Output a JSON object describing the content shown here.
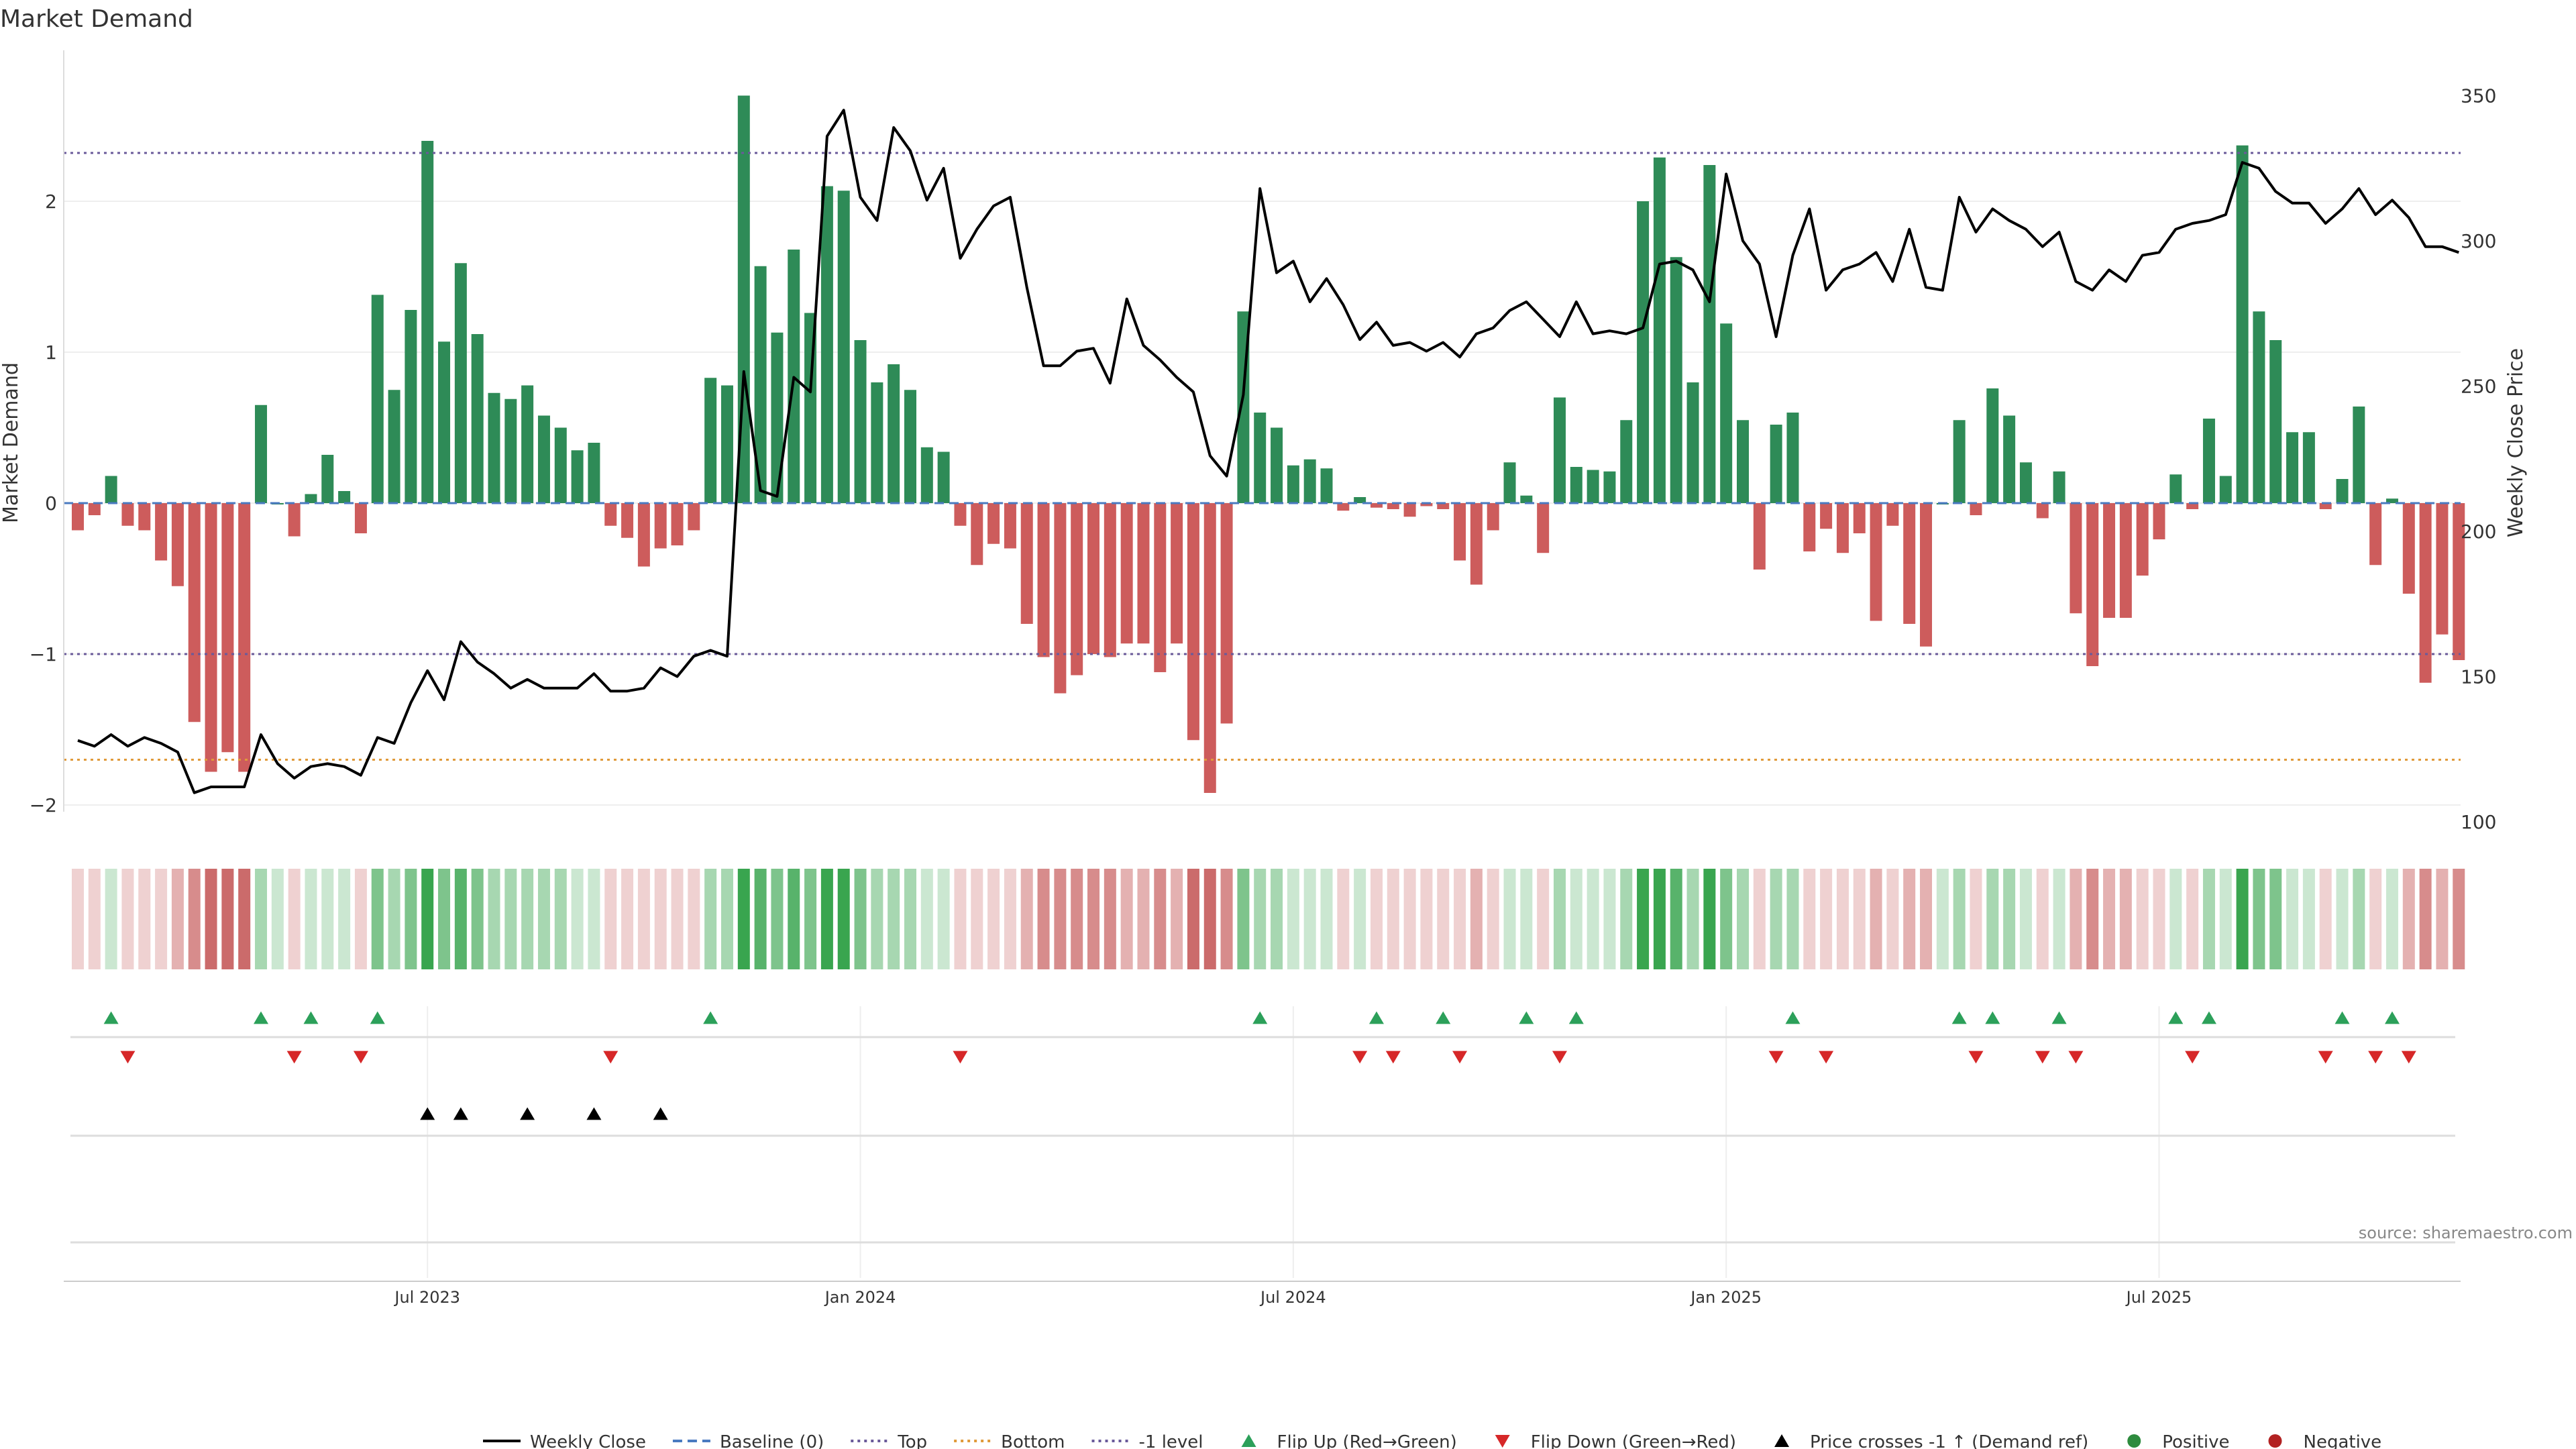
{
  "chart_data": {
    "type": "bar",
    "title": "Market Demand",
    "ylabel": "Market Demand",
    "y2label": "Weekly Close Price",
    "source": "source: sharemaestro.com",
    "ylim": [
      -2.1,
      2.75
    ],
    "y2lim": [
      100,
      355
    ],
    "yticks": [
      -2,
      -1,
      0,
      1,
      2
    ],
    "y2ticks": [
      100,
      150,
      200,
      250,
      300,
      350
    ],
    "x_ticks": [
      {
        "label": "Jul 2023",
        "week": 21
      },
      {
        "label": "Jan 2024",
        "week": 47
      },
      {
        "label": "Jul 2024",
        "week": 73
      },
      {
        "label": "Jan 2025",
        "week": 99
      },
      {
        "label": "Jul 2025",
        "week": 125
      }
    ],
    "reference_lines": {
      "top": 2.32,
      "bottom": -1.7,
      "minus_one": -1,
      "baseline": 0
    },
    "demand": [
      -0.18,
      -0.08,
      0.18,
      -0.15,
      -0.18,
      -0.38,
      -0.55,
      -1.45,
      -1.78,
      -1.65,
      -1.78,
      0.65,
      0.0,
      -0.22,
      0.06,
      0.32,
      0.08,
      -0.2,
      1.38,
      0.75,
      1.28,
      2.4,
      1.07,
      1.59,
      1.12,
      0.73,
      0.69,
      0.78,
      0.58,
      0.5,
      0.35,
      0.4,
      -0.15,
      -0.23,
      -0.42,
      -0.3,
      -0.28,
      -0.18,
      0.83,
      0.78,
      2.7,
      1.57,
      1.13,
      1.68,
      1.26,
      2.1,
      2.07,
      1.08,
      0.8,
      0.92,
      0.75,
      0.37,
      0.34,
      -0.15,
      -0.41,
      -0.27,
      -0.3,
      -0.8,
      -1.02,
      -1.26,
      -1.14,
      -1.0,
      -1.02,
      -0.93,
      -0.93,
      -1.12,
      -0.93,
      -1.57,
      -1.92,
      -1.46,
      1.27,
      0.6,
      0.5,
      0.25,
      0.29,
      0.23,
      -0.05,
      0.04,
      -0.03,
      -0.04,
      -0.09,
      -0.02,
      -0.04,
      -0.38,
      -0.54,
      -0.18,
      0.27,
      0.05,
      -0.33,
      0.7,
      0.24,
      0.22,
      0.21,
      0.55,
      2.0,
      2.29,
      1.63,
      0.8,
      2.24,
      1.19,
      0.55,
      -0.44,
      0.52,
      0.6,
      -0.32,
      -0.17,
      -0.33,
      -0.2,
      -0.78,
      -0.15,
      -0.8,
      -0.95,
      0.0,
      0.55,
      -0.08,
      0.76,
      0.58,
      0.27,
      -0.1,
      0.21,
      -0.73,
      -1.08,
      -0.76,
      -0.76,
      -0.48,
      -0.24,
      0.19,
      -0.04,
      0.56,
      0.18,
      2.37,
      1.27,
      1.08,
      0.47,
      0.47,
      -0.04,
      0.16,
      0.64,
      -0.41,
      0.03,
      -0.6,
      -1.19,
      -0.87,
      -1.04
    ],
    "weekly_close": [
      128,
      126,
      130,
      126,
      129,
      127,
      124,
      110,
      112,
      112,
      112,
      130,
      120,
      115,
      119,
      120,
      119,
      116,
      129,
      127,
      141,
      152,
      142,
      162,
      155,
      151,
      146,
      149,
      146,
      146,
      146,
      151,
      145,
      145,
      146,
      153,
      150,
      157,
      159,
      157,
      255,
      214,
      212,
      253,
      248,
      336,
      345,
      315,
      307,
      339,
      331,
      314,
      325,
      294,
      304,
      312,
      315,
      284,
      257,
      257,
      262,
      263,
      251,
      280,
      264,
      259,
      253,
      248,
      226,
      219,
      247,
      318,
      289,
      293,
      279,
      287,
      278,
      266,
      272,
      264,
      265,
      262,
      265,
      260,
      268,
      270,
      276,
      279,
      273,
      267,
      279,
      268,
      269,
      268,
      270,
      292,
      293,
      290,
      279,
      323,
      300,
      292,
      267,
      295,
      311,
      283,
      290,
      292,
      296,
      286,
      304,
      284,
      283,
      315,
      303,
      311,
      307,
      304,
      298,
      303,
      286,
      283,
      290,
      286,
      295,
      296,
      304,
      306,
      307,
      309,
      327,
      325,
      317,
      313,
      313,
      306,
      311,
      318,
      309,
      314,
      308,
      298,
      298,
      296
    ],
    "flip_up_weeks": [
      2,
      11,
      14,
      18,
      38,
      71,
      78,
      82,
      87,
      90,
      103,
      113,
      115,
      119,
      126,
      128,
      136,
      139
    ],
    "flip_down_weeks": [
      3,
      13,
      17,
      32,
      53,
      77,
      79,
      83,
      89,
      102,
      105,
      114,
      118,
      120,
      127,
      135,
      138,
      140
    ],
    "price_cross_weeks": [
      21,
      23,
      27,
      31,
      35
    ],
    "legend": [
      {
        "label": "Weekly Close",
        "kind": "line",
        "color": "#000000"
      },
      {
        "label": "Baseline (0)",
        "kind": "dash",
        "color": "#4a7ac0"
      },
      {
        "label": "Top",
        "kind": "dot",
        "color": "#6a5a9a"
      },
      {
        "label": "Bottom",
        "kind": "dot",
        "color": "#e09a3a"
      },
      {
        "label": "-1 level",
        "kind": "dot",
        "color": "#6a5a9a"
      },
      {
        "label": "Flip Up (Red→Green)",
        "kind": "tri-up",
        "color": "#2ca05a"
      },
      {
        "label": "Flip Down (Green→Red)",
        "kind": "tri-down",
        "color": "#d62728"
      },
      {
        "label": "Price crosses -1 ↑ (Demand ref)",
        "kind": "tri-up",
        "color": "#000000"
      },
      {
        "label": "Positive",
        "kind": "dot-circle",
        "color": "#2e8b3e"
      },
      {
        "label": "Negative",
        "kind": "dot-circle",
        "color": "#b22222"
      }
    ],
    "colors": {
      "positive": "#2e8b57",
      "negative": "#cd5c5c",
      "top_line": "#6a5a9a",
      "bottom_line": "#e09a3a",
      "baseline": "#4a7ac0",
      "price_line": "#000000",
      "flip_up": "#2ca05a",
      "flip_down": "#d62728",
      "price_cross": "#000000"
    }
  }
}
